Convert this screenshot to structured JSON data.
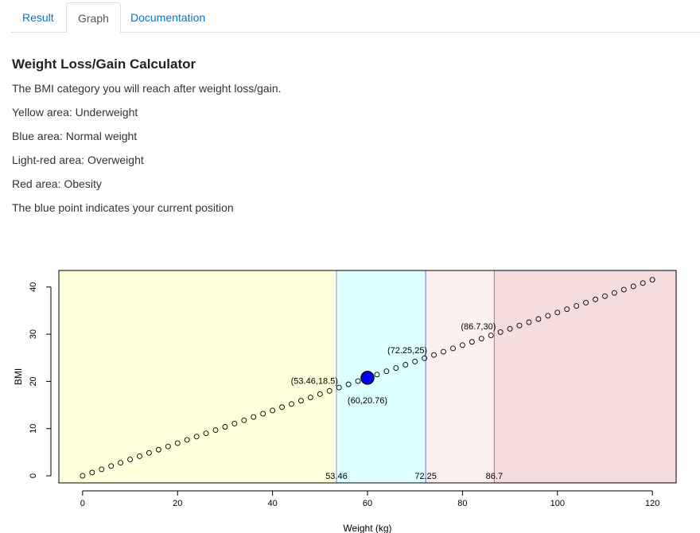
{
  "tabs": [
    {
      "label": "Result",
      "active": false
    },
    {
      "label": "Graph",
      "active": true
    },
    {
      "label": "Documentation",
      "active": false
    }
  ],
  "page": {
    "heading": "Weight Loss/Gain Calculator",
    "paragraphs": [
      "The BMI category you will reach after weight loss/gain.",
      "Yellow area: Underweight",
      "Blue area: Normal weight",
      "Light-red area: Overweight",
      "Red area: Obesity",
      "The blue point indicates your current position"
    ]
  },
  "chart_data": {
    "type": "scatter",
    "xlabel": "Weight (kg)",
    "ylabel": "BMI",
    "xlim": [
      -5,
      125
    ],
    "ylim": [
      -1.5,
      43.5
    ],
    "xticks": [
      0,
      20,
      40,
      60,
      80,
      100,
      120
    ],
    "yticks": [
      0,
      10,
      20,
      30,
      40
    ],
    "points_x_start": 0,
    "points_x_end": 120,
    "points_x_step": 2,
    "bmi_per_kg": 0.34602,
    "regions": [
      {
        "name": "Underweight",
        "x_from": -5,
        "x_to": 53.46,
        "color": "#ffffdc",
        "line_color": ""
      },
      {
        "name": "Normal weight",
        "x_from": 53.46,
        "x_to": 72.25,
        "color": "#dcffff",
        "line_color": "#8f8fe0"
      },
      {
        "name": "Overweight",
        "x_from": 72.25,
        "x_to": 86.7,
        "color": "#fdf0f0",
        "line_color": "#6f6fe8"
      },
      {
        "name": "Obesity",
        "x_from": 86.7,
        "x_to": 125,
        "color": "#f5dddd",
        "line_color": "#dd6666"
      }
    ],
    "boundary_labels": [
      {
        "x": 53.46,
        "text": "53.46"
      },
      {
        "x": 72.25,
        "text": "72.25"
      },
      {
        "x": 86.7,
        "text": "86.7"
      }
    ],
    "annotations": [
      {
        "x": 53.46,
        "y": 18.5,
        "text": "(53.46,18.5)",
        "pos": "above-left"
      },
      {
        "x": 72.25,
        "y": 25,
        "text": "(72.25,25)",
        "pos": "above-left"
      },
      {
        "x": 86.7,
        "y": 30,
        "text": "(86.7,30)",
        "pos": "above-left"
      },
      {
        "x": 60,
        "y": 20.76,
        "text": "(60,20.76)",
        "pos": "below"
      }
    ],
    "current_point": {
      "x": 60,
      "y": 20.76,
      "color": "#0000ff"
    }
  }
}
